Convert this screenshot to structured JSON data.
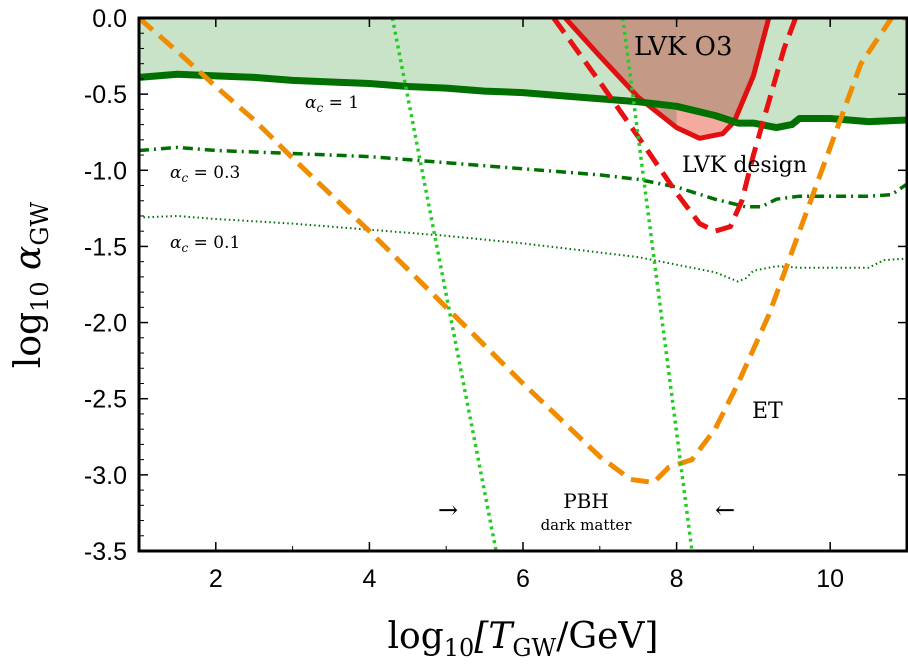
{
  "chart_data": {
    "type": "line",
    "xlim": [
      1,
      11
    ],
    "ylim": [
      -3.5,
      0.0
    ],
    "xticks": [
      2,
      4,
      6,
      8,
      10
    ],
    "yticks": [
      0.0,
      -0.5,
      -1.0,
      -1.5,
      -2.0,
      -2.5,
      -3.0,
      -3.5
    ],
    "xtick_labels": [
      "2",
      "4",
      "6",
      "8",
      "10"
    ],
    "ytick_labels": [
      "0.0",
      "-0.5",
      "-1.0",
      "-1.5",
      "-2.0",
      "-2.5",
      "-3.0",
      "-3.5"
    ],
    "xlabel": {
      "pre": "log",
      "sub": "10",
      "main": "[T",
      "main_sub": "GW",
      "post": "/GeV]"
    },
    "ylabel": {
      "pre": "log",
      "sub": "10",
      "main": " α",
      "main_sub": "GW"
    },
    "grid": false,
    "colors": {
      "excluded_fill": "#c8e3c8",
      "alpha1": "#007000",
      "alpha03": "#007000",
      "alpha01": "#007000",
      "lvk_o3_fill": "#c49a87",
      "lvk_o3_line": "#e01010",
      "lvk_o3_inner_fill": "#f5aaa0",
      "lvk_design": "#e81010",
      "et": "#f08c00",
      "pbh": "#22cc22"
    },
    "series": [
      {
        "key": "alpha1",
        "style": "solid",
        "x": [
          1.0,
          1.5,
          2.0,
          2.5,
          3.0,
          3.5,
          4.0,
          4.5,
          5.0,
          5.5,
          6.0,
          6.5,
          7.0,
          7.5,
          8.0,
          8.5,
          8.8,
          9.0,
          9.3,
          9.5,
          9.6,
          10.0,
          10.5,
          11.0
        ],
        "y": [
          -0.39,
          -0.37,
          -0.38,
          -0.39,
          -0.41,
          -0.42,
          -0.43,
          -0.45,
          -0.46,
          -0.48,
          -0.49,
          -0.51,
          -0.53,
          -0.55,
          -0.58,
          -0.64,
          -0.69,
          -0.69,
          -0.72,
          -0.7,
          -0.66,
          -0.66,
          -0.68,
          -0.67
        ]
      },
      {
        "key": "alpha03",
        "style": "dashdot",
        "x": [
          1.0,
          1.5,
          2.0,
          3.0,
          4.0,
          5.0,
          6.0,
          7.0,
          7.5,
          8.0,
          8.5,
          8.9,
          9.1,
          9.3,
          9.6,
          10.0,
          10.5,
          10.8,
          11.0
        ],
        "y": [
          -0.87,
          -0.85,
          -0.87,
          -0.89,
          -0.91,
          -0.95,
          -0.99,
          -1.03,
          -1.06,
          -1.11,
          -1.19,
          -1.24,
          -1.24,
          -1.19,
          -1.17,
          -1.17,
          -1.17,
          -1.16,
          -1.09
        ]
      },
      {
        "key": "alpha01",
        "style": "dotted",
        "x": [
          1.0,
          1.5,
          2.0,
          3.0,
          4.0,
          5.0,
          6.0,
          7.0,
          7.5,
          8.0,
          8.5,
          8.8,
          8.9,
          9.0,
          9.3,
          9.6,
          10.0,
          10.5,
          10.7,
          11.0
        ],
        "y": [
          -1.31,
          -1.3,
          -1.32,
          -1.35,
          -1.39,
          -1.43,
          -1.48,
          -1.54,
          -1.57,
          -1.62,
          -1.67,
          -1.73,
          -1.71,
          -1.66,
          -1.63,
          -1.64,
          -1.64,
          -1.64,
          -1.59,
          -1.58
        ]
      },
      {
        "key": "lvk_design",
        "style": "dashed",
        "x": [
          6.4,
          7.0,
          7.5,
          8.0,
          8.3,
          8.5,
          8.7,
          8.85,
          9.0,
          9.2,
          9.4,
          9.55
        ],
        "y": [
          0.0,
          -0.42,
          -0.78,
          -1.15,
          -1.35,
          -1.4,
          -1.37,
          -1.2,
          -0.9,
          -0.55,
          -0.2,
          0.0
        ]
      },
      {
        "key": "et",
        "style": "dashed",
        "x": [
          1.0,
          1.5,
          2.0,
          2.5,
          3.0,
          4.0,
          5.0,
          6.0,
          7.0,
          7.4,
          7.7,
          7.9,
          8.2,
          8.5,
          8.8,
          9.2,
          9.6,
          10.0,
          10.4,
          10.8,
          11.0
        ],
        "y": [
          0.0,
          -0.22,
          -0.45,
          -0.67,
          -0.92,
          -1.4,
          -1.9,
          -2.4,
          -2.88,
          -3.03,
          -3.05,
          -2.95,
          -2.9,
          -2.7,
          -2.4,
          -1.95,
          -1.4,
          -0.85,
          -0.3,
          0.0,
          0.0
        ]
      },
      {
        "key": "pbh_left",
        "style": "dotted",
        "x": [
          4.3,
          5.65
        ],
        "y": [
          0.0,
          -3.5
        ]
      },
      {
        "key": "pbh_right",
        "style": "dotted",
        "x": [
          7.3,
          8.2
        ],
        "y": [
          0.0,
          -3.5
        ]
      }
    ],
    "lvk_o3_region": {
      "x": [
        6.55,
        7.0,
        7.5,
        8.0,
        8.3,
        8.6,
        8.75,
        9.0,
        9.2
      ],
      "y": [
        0.0,
        -0.25,
        -0.52,
        -0.72,
        -0.79,
        -0.76,
        -0.68,
        -0.38,
        0.0
      ]
    },
    "annotations": {
      "lvk_o3": "LVK  O3",
      "lvk_design": "LVK  design",
      "et": "ET",
      "pbh": "PBH",
      "dark_matter": "dark matter",
      "arrow_right": "→",
      "arrow_left": "←",
      "alpha1_label": {
        "sym": "α",
        "sub": "c",
        "rest": " = 1"
      },
      "alpha03_label": {
        "sym": "α",
        "sub": "c",
        "rest": " = 0.3"
      },
      "alpha01_label": {
        "sym": "α",
        "sub": "c",
        "rest": " = 0.1"
      }
    }
  }
}
